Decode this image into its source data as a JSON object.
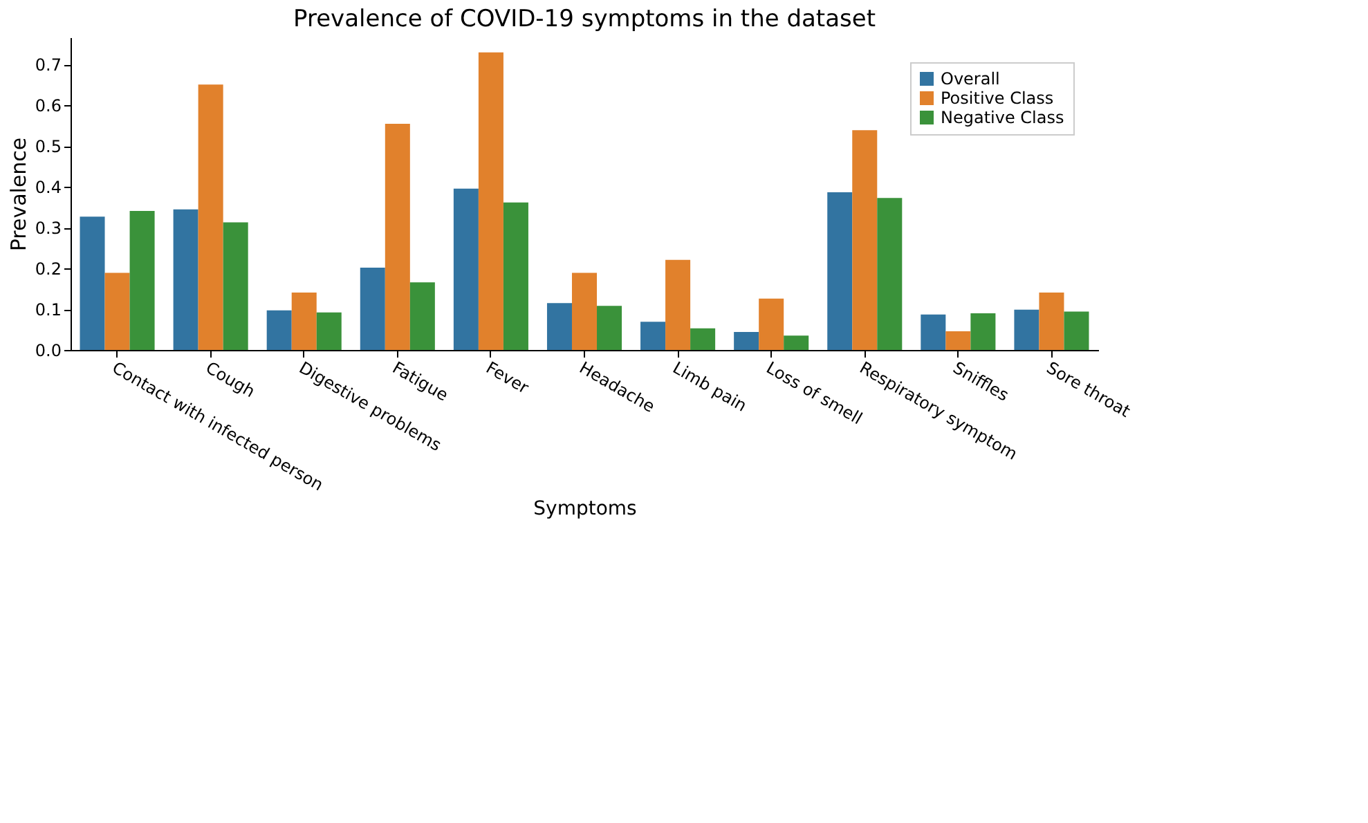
{
  "chart_data": {
    "type": "bar",
    "title": "Prevalence of COVID-19 symptoms in the dataset",
    "xlabel": "Symptoms",
    "ylabel": "Prevalence",
    "categories": [
      "Contact with infected person",
      "Cough",
      "Digestive problems",
      "Fatigue",
      "Fever",
      "Headache",
      "Limb pain",
      "Loss of smell",
      "Respiratory symptom",
      "Sniffles",
      "Sore throat"
    ],
    "series": [
      {
        "name": "Overall",
        "color": "#3274a1",
        "values": [
          0.327,
          0.345,
          0.097,
          0.202,
          0.396,
          0.115,
          0.069,
          0.044,
          0.387,
          0.087,
          0.099
        ]
      },
      {
        "name": "Positive Class",
        "color": "#e1812c",
        "values": [
          0.189,
          0.651,
          0.141,
          0.555,
          0.73,
          0.189,
          0.221,
          0.126,
          0.539,
          0.046,
          0.141
        ]
      },
      {
        "name": "Negative Class",
        "color": "#3a923a",
        "values": [
          0.341,
          0.313,
          0.092,
          0.166,
          0.362,
          0.108,
          0.053,
          0.035,
          0.373,
          0.09,
          0.094
        ]
      }
    ],
    "ylim": [
      0,
      0.767
    ],
    "yticks": [
      {
        "value": 0,
        "label": "0.0"
      },
      0.1,
      0.2,
      0.3,
      0.4,
      0.5,
      0.6,
      0.7
    ],
    "grid": false,
    "legend": "top right"
  }
}
